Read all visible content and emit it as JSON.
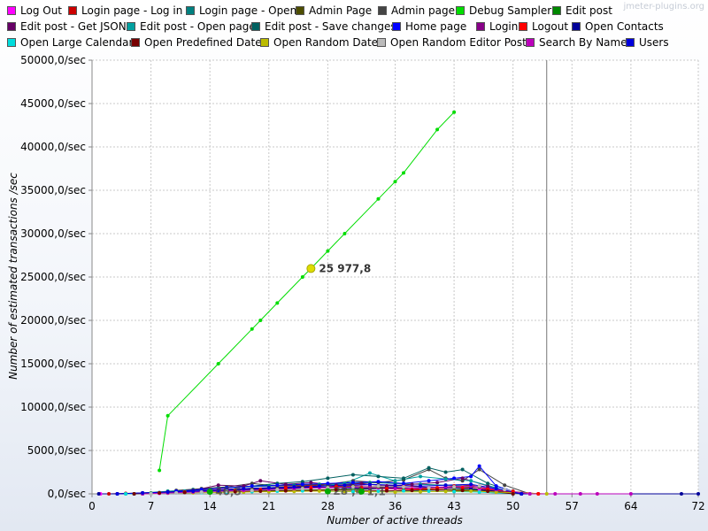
{
  "watermark": "jmeter-plugins.org",
  "chart_data": {
    "type": "line",
    "xlabel": "Number of active threads",
    "ylabel": "Number of estimated transactions /sec",
    "xlim": [
      0,
      72
    ],
    "ylim": [
      0,
      50000
    ],
    "x_ticks": [
      "0",
      "7",
      "14",
      "21",
      "28",
      "36",
      "43",
      "50",
      "57",
      "64",
      "72"
    ],
    "y_ticks": [
      "0,0/sec",
      "5000,0/sec",
      "10000,0/sec",
      "15000,0/sec",
      "20000,0/sec",
      "25000,0/sec",
      "30000,0/sec",
      "35000,0/sec",
      "40000,0/sec",
      "45000,0/sec",
      "50000,0/sec"
    ],
    "grid": true,
    "legend_position": "top",
    "vertical_marker_x": 54.0,
    "highlight": {
      "series": "Debug Sampler",
      "x": 26,
      "y": 25977.8,
      "label": "25 977,8"
    },
    "faint_callouts": [
      {
        "x": 14,
        "y": 40,
        "label": "46,5"
      },
      {
        "x": 28,
        "y": 90,
        "label": "28 ,4"
      },
      {
        "x": 32,
        "y": 60,
        "label": "1,1"
      }
    ],
    "series": [
      {
        "name": "Log Out",
        "color": "#ff00ff",
        "x": [
          1,
          3,
          5,
          8,
          10,
          12,
          15,
          17,
          20,
          22,
          24,
          26,
          28,
          30,
          32,
          34,
          36,
          38,
          40,
          42,
          44,
          46,
          48,
          50,
          52
        ],
        "y": [
          0,
          0,
          0,
          50,
          100,
          200,
          300,
          350,
          400,
          500,
          600,
          700,
          650,
          700,
          600,
          650,
          700,
          600,
          650,
          700,
          750,
          500,
          300,
          150,
          0
        ]
      },
      {
        "name": "Login page - Log in",
        "color": "#cc0000",
        "x": [
          2,
          4,
          6,
          9,
          11,
          13,
          16,
          18,
          21,
          23,
          25,
          27,
          29,
          31,
          33,
          35,
          37,
          39,
          41,
          43,
          45,
          47,
          50,
          53
        ],
        "y": [
          0,
          50,
          100,
          200,
          300,
          400,
          500,
          600,
          700,
          800,
          900,
          1000,
          900,
          800,
          850,
          900,
          950,
          800,
          700,
          900,
          1000,
          600,
          300,
          0
        ]
      },
      {
        "name": "Login page - Open",
        "color": "#008080",
        "x": [
          3,
          6,
          9,
          12,
          15,
          18,
          21,
          24,
          27,
          30,
          33,
          36,
          39,
          42,
          45,
          48,
          51
        ],
        "y": [
          0,
          100,
          300,
          500,
          700,
          800,
          900,
          1000,
          1100,
          1200,
          1300,
          1200,
          1100,
          1000,
          900,
          500,
          0
        ]
      },
      {
        "name": "Admin Page",
        "color": "#4d4d00",
        "x": [
          4,
          7,
          10,
          13,
          16,
          19,
          22,
          25,
          28,
          31,
          34,
          37,
          40,
          43,
          46,
          50
        ],
        "y": [
          0,
          100,
          200,
          300,
          400,
          500,
          600,
          700,
          800,
          900,
          800,
          700,
          600,
          700,
          800,
          0
        ]
      },
      {
        "name": "Admin page",
        "color": "#444444",
        "x": [
          10,
          13,
          16,
          19,
          22,
          25,
          28,
          31,
          34,
          37,
          40,
          42,
          44,
          46,
          49,
          52
        ],
        "y": [
          400,
          600,
          800,
          1200,
          900,
          1000,
          1100,
          1500,
          1300,
          1600,
          2800,
          1800,
          1500,
          2800,
          1000,
          0
        ]
      },
      {
        "name": "Debug Sampler",
        "color": "#00dd00",
        "x": [
          8,
          9,
          15,
          19,
          20,
          22,
          25,
          26,
          28,
          30,
          34,
          36,
          37,
          41,
          43
        ],
        "y": [
          2700,
          9000,
          15000,
          19000,
          20000,
          22000,
          25000,
          25977.8,
          28000,
          30000,
          34000,
          36000,
          37000,
          42000,
          44000
        ]
      },
      {
        "name": "Edit post",
        "color": "#008800",
        "x": [
          5,
          8,
          11,
          14,
          17,
          20,
          23,
          26,
          29,
          32,
          35,
          38,
          41,
          44,
          47,
          51
        ],
        "y": [
          0,
          100,
          200,
          250,
          300,
          350,
          400,
          450,
          500,
          550,
          600,
          500,
          450,
          500,
          400,
          0
        ]
      },
      {
        "name": "Edit post - Get JSON",
        "color": "#660066",
        "x": [
          6,
          9,
          12,
          15,
          18,
          20,
          23,
          26,
          29,
          32,
          35,
          38,
          41,
          44,
          47,
          51
        ],
        "y": [
          0,
          200,
          400,
          1000,
          900,
          1500,
          1100,
          1300,
          1000,
          1200,
          900,
          1100,
          1300,
          1800,
          900,
          0
        ]
      },
      {
        "name": "Edit post - Open page",
        "color": "#00a0a0",
        "x": [
          5,
          8,
          11,
          14,
          17,
          21,
          24,
          27,
          30,
          33,
          36,
          39,
          42,
          45,
          48,
          51
        ],
        "y": [
          0,
          150,
          300,
          400,
          500,
          600,
          700,
          900,
          1200,
          2400,
          1500,
          2000,
          1700,
          1500,
          700,
          0
        ]
      },
      {
        "name": "Edit post - Save changes",
        "color": "#006060",
        "x": [
          7,
          10,
          13,
          16,
          19,
          22,
          25,
          28,
          31,
          34,
          37,
          40,
          42,
          44,
          47,
          51
        ],
        "y": [
          0,
          300,
          500,
          700,
          900,
          1200,
          1400,
          1800,
          2200,
          2000,
          1800,
          3000,
          2500,
          2800,
          1200,
          0
        ]
      },
      {
        "name": "Home page",
        "color": "#0000ff",
        "x": [
          10,
          13,
          16,
          19,
          22,
          25,
          28,
          31,
          34,
          37,
          40,
          43,
          45,
          46,
          48,
          51
        ],
        "y": [
          300,
          500,
          700,
          900,
          1000,
          1100,
          1200,
          1300,
          1400,
          1200,
          1500,
          1800,
          2000,
          3200,
          900,
          0
        ]
      },
      {
        "name": "Login",
        "color": "#880088",
        "x": [
          6,
          9,
          12,
          15,
          18,
          21,
          24,
          27,
          30,
          33,
          36,
          39,
          42,
          45,
          48,
          51
        ],
        "y": [
          0,
          100,
          300,
          500,
          600,
          700,
          800,
          900,
          1000,
          900,
          800,
          700,
          800,
          900,
          400,
          0
        ]
      },
      {
        "name": "Logout",
        "color": "#ff0000",
        "x": [
          8,
          11,
          14,
          17,
          20,
          23,
          26,
          29,
          32,
          35,
          38,
          41,
          44,
          47,
          50,
          53
        ],
        "y": [
          100,
          200,
          300,
          400,
          500,
          600,
          700,
          800,
          700,
          600,
          500,
          600,
          700,
          500,
          200,
          0
        ]
      },
      {
        "name": "Open Contacts",
        "color": "#000099",
        "x": [
          0.8,
          3,
          6,
          9,
          12,
          15,
          18,
          21,
          24,
          27,
          30,
          33,
          36,
          39,
          42,
          45,
          48,
          51,
          70,
          72
        ],
        "y": [
          0,
          0,
          100,
          200,
          300,
          400,
          500,
          600,
          700,
          800,
          700,
          600,
          700,
          800,
          700,
          600,
          300,
          0,
          0,
          0
        ]
      },
      {
        "name": "Open Large Calendar",
        "color": "#00dddd",
        "x": [
          4,
          7,
          10,
          13,
          16,
          19,
          22,
          25,
          28,
          31,
          34,
          37,
          40,
          43,
          46,
          50
        ],
        "y": [
          0,
          50,
          100,
          150,
          200,
          250,
          300,
          350,
          300,
          250,
          300,
          350,
          300,
          250,
          200,
          0
        ]
      },
      {
        "name": "Open Predefined Date",
        "color": "#770000",
        "x": [
          5,
          8,
          11,
          14,
          17,
          20,
          23,
          26,
          29,
          32,
          35,
          38,
          41,
          44,
          47,
          50
        ],
        "y": [
          0,
          100,
          150,
          200,
          250,
          300,
          350,
          400,
          450,
          400,
          350,
          400,
          450,
          400,
          300,
          0
        ]
      },
      {
        "name": "Open Random Date",
        "color": "#bbbb00",
        "x": [
          6,
          9,
          12,
          15,
          18,
          21,
          24,
          27,
          30,
          33,
          36,
          39,
          42,
          45,
          48,
          54
        ],
        "y": [
          0,
          80,
          120,
          160,
          200,
          240,
          280,
          320,
          280,
          240,
          200,
          240,
          280,
          320,
          200,
          0
        ]
      },
      {
        "name": "Open Random Editor Post",
        "color": "#bbbbbb",
        "x": [
          7,
          10,
          13,
          16,
          19,
          22,
          25,
          28,
          31,
          34,
          37,
          40,
          43,
          46,
          49,
          52
        ],
        "y": [
          0,
          100,
          200,
          300,
          400,
          500,
          600,
          700,
          800,
          900,
          800,
          700,
          800,
          900,
          500,
          0
        ]
      },
      {
        "name": "Search By Name",
        "color": "#bb00bb",
        "x": [
          6,
          9,
          12,
          15,
          18,
          21,
          24,
          27,
          30,
          33,
          36,
          39,
          42,
          45,
          48,
          52,
          55,
          58,
          60,
          64
        ],
        "y": [
          0,
          100,
          200,
          300,
          400,
          500,
          600,
          700,
          800,
          700,
          600,
          700,
          800,
          900,
          500,
          0,
          0,
          0,
          0,
          0
        ]
      },
      {
        "name": "Users",
        "color": "#0000dd",
        "x": [
          3,
          6,
          9,
          12,
          15,
          18,
          21,
          24,
          27,
          30,
          33,
          36,
          39,
          42,
          45,
          48,
          51
        ],
        "y": [
          0,
          100,
          200,
          300,
          400,
          600,
          700,
          800,
          900,
          1000,
          1100,
          1000,
          900,
          1000,
          1100,
          600,
          0
        ]
      }
    ]
  }
}
